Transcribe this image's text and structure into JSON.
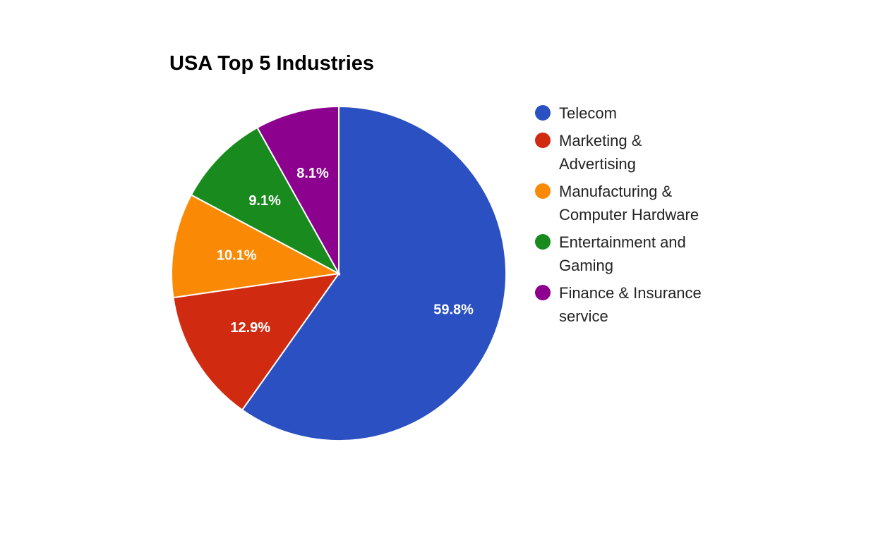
{
  "chart_data": {
    "type": "pie",
    "title": "USA Top 5 Industries",
    "legend_position": "right",
    "slices": [
      {
        "name": "Telecom",
        "value": 59.8,
        "label": "59.8%",
        "color": "#2a50c2"
      },
      {
        "name": "Marketing & Advertising",
        "value": 12.9,
        "label": "12.9%",
        "color": "#d02a10"
      },
      {
        "name": "Manufacturing & Computer Hardware",
        "value": 10.1,
        "label": "10.1%",
        "color": "#fa8a06"
      },
      {
        "name": "Entertainment and Gaming",
        "value": 9.1,
        "label": "9.1%",
        "color": "#188a1e"
      },
      {
        "name": "Finance & Insurance service",
        "value": 8.1,
        "label": "8.1%",
        "color": "#8c028e"
      }
    ]
  }
}
